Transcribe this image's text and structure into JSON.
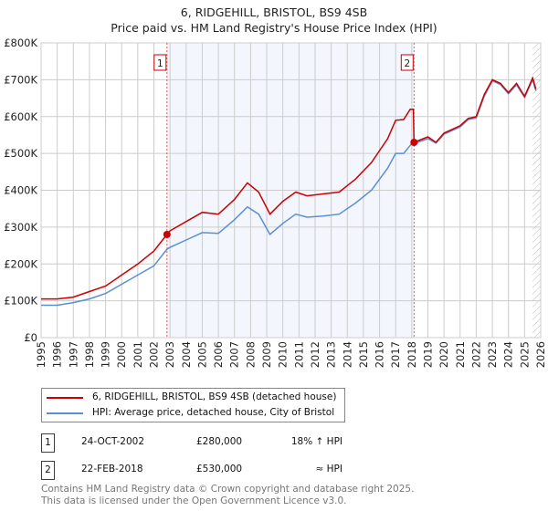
{
  "header": {
    "title": "6, RIDGEHILL, BRISTOL, BS9 4SB",
    "subtitle": "Price paid vs. HM Land Registry's House Price Index (HPI)"
  },
  "chart_data": {
    "type": "line",
    "title": "6, RIDGEHILL, BRISTOL, BS9 4SB",
    "subtitle": "Price paid vs. HM Land Registry's House Price Index (HPI)",
    "xlim": [
      1995,
      2026
    ],
    "ylim": [
      0,
      800000
    ],
    "grid": true,
    "x_ticks": [
      "1995",
      "1996",
      "1997",
      "1998",
      "1999",
      "2000",
      "2001",
      "2002",
      "2003",
      "2004",
      "2005",
      "2006",
      "2007",
      "2008",
      "2009",
      "2010",
      "2011",
      "2012",
      "2013",
      "2014",
      "2015",
      "2016",
      "2017",
      "2018",
      "2019",
      "2020",
      "2021",
      "2022",
      "2023",
      "2024",
      "2025",
      "2026"
    ],
    "y_ticks": [
      {
        "v": 0,
        "label": "£0"
      },
      {
        "v": 100000,
        "label": "£100K"
      },
      {
        "v": 200000,
        "label": "£200K"
      },
      {
        "v": 300000,
        "label": "£300K"
      },
      {
        "v": 400000,
        "label": "£400K"
      },
      {
        "v": 500000,
        "label": "£500K"
      },
      {
        "v": 600000,
        "label": "£600K"
      },
      {
        "v": 700000,
        "label": "£700K"
      },
      {
        "v": 800000,
        "label": "£800K"
      }
    ],
    "shaded_range": [
      2002.81,
      2018.14
    ],
    "future_hatch_from": 2025.5,
    "series": [
      {
        "name": "6, RIDGEHILL, BRISTOL, BS9 4SB (detached house)",
        "color": "#cc0000",
        "x": [
          1995,
          1996,
          1997,
          1998,
          1999,
          2000,
          2001,
          2002,
          2002.81,
          2003,
          2004,
          2005,
          2006,
          2007,
          2007.8,
          2008.5,
          2009.2,
          2010,
          2010.8,
          2011.5,
          2012.5,
          2013.5,
          2014.5,
          2015.5,
          2016.5,
          2017,
          2017.5,
          2017.9,
          2018.1,
          2018.14,
          2019,
          2019.5,
          2020,
          2021,
          2021.5,
          2022,
          2022.5,
          2023,
          2023.5,
          2024,
          2024.5,
          2025,
          2025.5,
          2025.7
        ],
        "y": [
          105000,
          105000,
          110000,
          125000,
          140000,
          170000,
          200000,
          235000,
          280000,
          290000,
          315000,
          340000,
          335000,
          375000,
          420000,
          395000,
          335000,
          370000,
          395000,
          385000,
          390000,
          395000,
          430000,
          475000,
          540000,
          590000,
          592000,
          620000,
          620000,
          530000,
          545000,
          530000,
          555000,
          575000,
          595000,
          600000,
          660000,
          700000,
          690000,
          665000,
          690000,
          655000,
          705000,
          675000
        ]
      },
      {
        "name": "HPI: Average price, detached house, City of Bristol",
        "color": "#5b8fd4",
        "x": [
          1995,
          1996,
          1997,
          1998,
          1999,
          2000,
          2001,
          2002,
          2002.81,
          2003,
          2004,
          2005,
          2006,
          2007,
          2007.8,
          2008.5,
          2009.2,
          2010,
          2010.8,
          2011.5,
          2012.5,
          2013.5,
          2014.5,
          2015.5,
          2016.5,
          2017,
          2017.5,
          2018,
          2018.14,
          2019,
          2019.5,
          2020,
          2021,
          2021.5,
          2022,
          2022.5,
          2023,
          2023.5,
          2024,
          2024.5,
          2025,
          2025.5,
          2025.7
        ],
        "y": [
          88000,
          88000,
          95000,
          105000,
          120000,
          145000,
          170000,
          195000,
          240000,
          245000,
          265000,
          285000,
          283000,
          320000,
          355000,
          335000,
          280000,
          310000,
          335000,
          327000,
          330000,
          335000,
          365000,
          400000,
          460000,
          500000,
          500000,
          527000,
          527000,
          540000,
          528000,
          552000,
          572000,
          592000,
          596000,
          655000,
          697000,
          687000,
          662000,
          686000,
          652000,
          700000,
          670000
        ]
      }
    ],
    "annotations": [
      {
        "label": "1",
        "x": 2002.81,
        "y": 280000
      },
      {
        "label": "2",
        "x": 2018.14,
        "y": 530000
      }
    ]
  },
  "legend": {
    "items": [
      {
        "label": "6, RIDGEHILL, BRISTOL, BS9 4SB (detached house)",
        "color": "#cc0000"
      },
      {
        "label": "HPI: Average price, detached house, City of Bristol",
        "color": "#5b8fd4"
      }
    ]
  },
  "sales": [
    {
      "num": "1",
      "date": "24-OCT-2002",
      "price": "£280,000",
      "hpi": "18% ↑ HPI"
    },
    {
      "num": "2",
      "date": "22-FEB-2018",
      "price": "£530,000",
      "hpi": "≈ HPI"
    }
  ],
  "footer": {
    "line1": "Contains HM Land Registry data © Crown copyright and database right 2025.",
    "line2": "This data is licensed under the Open Government Licence v3.0."
  }
}
